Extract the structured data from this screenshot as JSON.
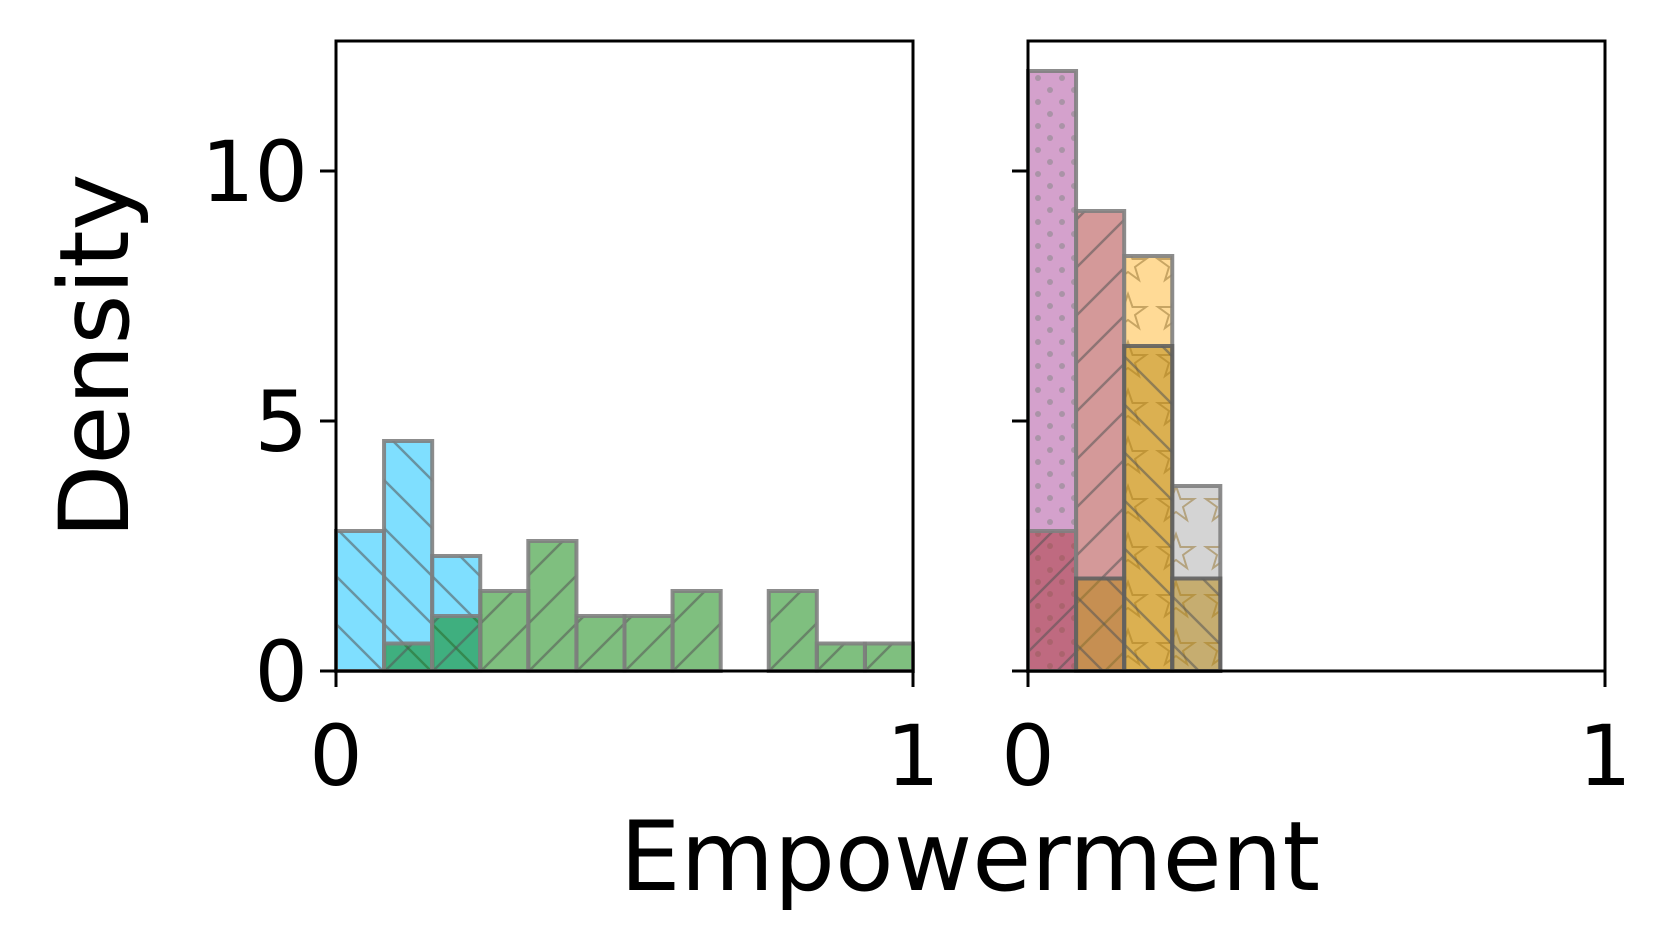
{
  "chart_data": {
    "type": "bar",
    "xlabel": "Empowerment",
    "ylabel": "Density",
    "xlim": [
      0,
      1
    ],
    "ylim": [
      0,
      12.6
    ],
    "xticks": [
      0,
      1
    ],
    "yticks": [
      0,
      5,
      10
    ],
    "grid": false,
    "legend": "none",
    "bin_width": 0.0833,
    "panels": [
      {
        "series": [
          {
            "color": "#00BFFF",
            "edge_color": "#808080",
            "hatch": "backslash",
            "bins": [
              {
                "x0": 0.0,
                "x1": 0.0833,
                "density": 2.8
              },
              {
                "x0": 0.0833,
                "x1": 0.1667,
                "density": 4.6
              },
              {
                "x0": 0.1667,
                "x1": 0.25,
                "density": 2.3
              }
            ]
          },
          {
            "color": "#008000",
            "edge_color": "#808080",
            "hatch": "slash",
            "bins": [
              {
                "x0": 0.0833,
                "x1": 0.1667,
                "density": 0.55
              },
              {
                "x0": 0.1667,
                "x1": 0.25,
                "density": 1.1
              },
              {
                "x0": 0.25,
                "x1": 0.3333,
                "density": 1.6
              },
              {
                "x0": 0.3333,
                "x1": 0.4167,
                "density": 2.6
              },
              {
                "x0": 0.4167,
                "x1": 0.5,
                "density": 1.1
              },
              {
                "x0": 0.5,
                "x1": 0.5833,
                "density": 1.1
              },
              {
                "x0": 0.5833,
                "x1": 0.6667,
                "density": 1.6
              },
              {
                "x0": 0.75,
                "x1": 0.8333,
                "density": 1.6
              },
              {
                "x0": 0.8333,
                "x1": 0.9167,
                "density": 0.55
              },
              {
                "x0": 0.9167,
                "x1": 1.0,
                "density": 0.55
              }
            ]
          }
        ]
      },
      {
        "series": [
          {
            "color": "#AA4499",
            "edge_color": "#808080",
            "hatch": "dots",
            "bins": [
              {
                "x0": 0.0,
                "x1": 0.0833,
                "density": 12.0
              }
            ]
          },
          {
            "color": "#AA3333",
            "edge_color": "#808080",
            "hatch": "slash",
            "bins": [
              {
                "x0": 0.0,
                "x1": 0.0833,
                "density": 2.8
              },
              {
                "x0": 0.0833,
                "x1": 0.1667,
                "density": 9.2
              }
            ]
          },
          {
            "color": "#FFB52E",
            "edge_color": "#808080",
            "hatch": "star",
            "bins": [
              {
                "x0": 0.1667,
                "x1": 0.25,
                "density": 8.3
              }
            ]
          },
          {
            "color": "#AAAAAA",
            "edge_color": "#808080",
            "hatch": "star",
            "bins": [
              {
                "x0": 0.25,
                "x1": 0.3333,
                "density": 3.7
              }
            ]
          },
          {
            "color": "#B8860B",
            "edge_color": "#606060",
            "hatch": "backslash",
            "bins": [
              {
                "x0": 0.0833,
                "x1": 0.1667,
                "density": 1.85
              },
              {
                "x0": 0.1667,
                "x1": 0.25,
                "density": 6.5
              },
              {
                "x0": 0.25,
                "x1": 0.3333,
                "density": 1.85
              }
            ]
          }
        ]
      }
    ]
  }
}
